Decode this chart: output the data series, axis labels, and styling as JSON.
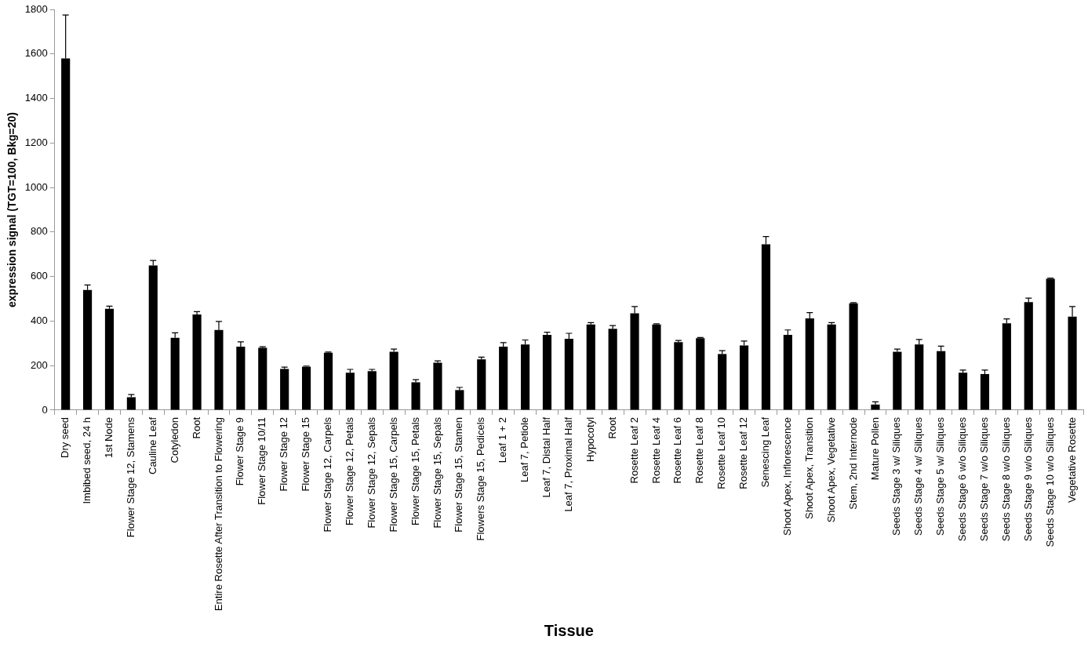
{
  "chart_data": {
    "type": "bar",
    "xlabel": "Tissue",
    "ylabel": "expression signal (TGT=100, Bkg=20)",
    "categories": [
      "Dry seed",
      "Imbibed seed, 24 h",
      "1st Node",
      "Flower Stage 12, Stamens",
      "Cauline Leaf",
      "Cotyledon",
      "Root",
      "Entire Rosette After Transition to Flowering",
      "Flower Stage 9",
      "Flower Stage 10/11",
      "Flower Stage 12",
      "Flower Stage 15",
      "Flower Stage 12, Carpels",
      "Flower Stage 12, Petals",
      "Flower Stage 12, Sepals",
      "Flower Stage 15, Carpels",
      "Flower Stage 15, Petals",
      "Flower Stage 15, Sepals",
      "Flower Stage 15, Stamen",
      "Flowers Stage 15, Pedicels",
      "Leaf 1 + 2",
      "Leaf 7, Petiole",
      "Leaf 7, Distal Half",
      "Leaf 7, Proximal Half",
      "Hypocotyl",
      "Root",
      "Rosette Leaf 2",
      "Rosette Leaf 4",
      "Rosette Leaf 6",
      "Rosette Leaf 8",
      "Rosette Leaf 10",
      "Rosette Leaf 12",
      "Senescing Leaf",
      "Shoot Apex, Inflorescence",
      "Shoot Apex, Transition",
      "Shoot Apex, Vegetative",
      "Stem, 2nd Internode",
      "Mature Pollen",
      "Seeds Stage 3 w/ Siliques",
      "Seeds Stage 4 w/ Siliques",
      "Seeds Stage 5 w/ Siliques",
      "Seeds Stage 6 w/o Siliques",
      "Seeds Stage 7 w/o Siliques",
      "Seeds Stage 8 w/o Siliques",
      "Seeds Stage 9 w/o Siliques",
      "Seeds Stage 10 w/o Siliques",
      "Vegetative Rosette"
    ],
    "values": [
      1580,
      540,
      455,
      58,
      650,
      325,
      430,
      360,
      285,
      280,
      185,
      195,
      258,
      168,
      175,
      262,
      125,
      213,
      90,
      228,
      285,
      295,
      338,
      320,
      385,
      365,
      435,
      385,
      305,
      323,
      252,
      290,
      745,
      338,
      412,
      385,
      480,
      25,
      262,
      295,
      265,
      168,
      162,
      390,
      485,
      590,
      420
    ],
    "errors": [
      [
        1580,
        1775
      ],
      [
        540,
        562
      ],
      [
        455,
        467
      ],
      [
        58,
        70
      ],
      [
        650,
        672
      ],
      [
        325,
        347
      ],
      [
        430,
        442
      ],
      [
        360,
        398
      ],
      [
        285,
        307
      ],
      [
        280,
        285
      ],
      [
        185,
        193
      ],
      [
        195,
        198
      ],
      [
        258,
        261
      ],
      [
        168,
        183
      ],
      [
        175,
        183
      ],
      [
        262,
        274
      ],
      [
        125,
        137
      ],
      [
        213,
        221
      ],
      [
        90,
        102
      ],
      [
        228,
        238
      ],
      [
        285,
        303
      ],
      [
        295,
        315
      ],
      [
        338,
        350
      ],
      [
        320,
        345
      ],
      [
        385,
        393
      ],
      [
        365,
        380
      ],
      [
        435,
        465
      ],
      [
        385,
        388
      ],
      [
        305,
        313
      ],
      [
        323,
        326
      ],
      [
        252,
        267
      ],
      [
        290,
        310
      ],
      [
        745,
        780
      ],
      [
        338,
        360
      ],
      [
        412,
        438
      ],
      [
        385,
        393
      ],
      [
        480,
        483
      ],
      [
        25,
        37
      ],
      [
        262,
        274
      ],
      [
        295,
        317
      ],
      [
        265,
        287
      ],
      [
        168,
        180
      ],
      [
        162,
        180
      ],
      [
        390,
        410
      ],
      [
        485,
        503
      ],
      [
        590,
        593
      ],
      [
        420,
        465
      ]
    ],
    "color": "#000000",
    "ylim": [
      0,
      1800
    ],
    "yticks": [
      0,
      200,
      400,
      600,
      800,
      1000,
      1200,
      1400,
      1600,
      1800
    ],
    "grid": false
  }
}
